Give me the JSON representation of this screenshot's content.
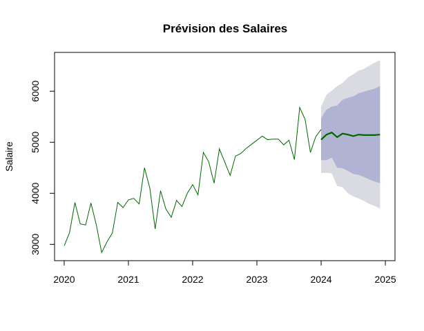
{
  "chart_data": {
    "type": "line",
    "title": "Prévision des Salaires",
    "xlabel": "",
    "ylabel": "Salaire",
    "xlim": [
      2019.85,
      2025.15
    ],
    "ylim": [
      2680,
      6760
    ],
    "grid": false,
    "legend": "none",
    "x_ticks": [
      2020,
      2021,
      2022,
      2023,
      2024,
      2025
    ],
    "x_tick_labels": [
      "2020",
      "2021",
      "2022",
      "2023",
      "2024",
      "2025"
    ],
    "y_ticks": [
      3000,
      4000,
      5000,
      6000
    ],
    "y_tick_labels": [
      "3000",
      "4000",
      "5000",
      "6000"
    ],
    "colors": {
      "history": "#006400",
      "forecast": "#006400",
      "band95": "#dadae2",
      "band80": "#b0b4d2"
    },
    "history": {
      "start": 2020,
      "frequency": 12,
      "values": [
        2970,
        3230,
        3820,
        3400,
        3380,
        3810,
        3380,
        2840,
        3050,
        3220,
        3820,
        3720,
        3870,
        3900,
        3790,
        4500,
        4100,
        3300,
        4050,
        3690,
        3530,
        3860,
        3740,
        4000,
        4170,
        3970,
        4800,
        4620,
        4200,
        4870,
        4610,
        4350,
        4730,
        4780,
        4880,
        4960,
        5040,
        5120,
        5050,
        5060,
        5060,
        4950,
        5040,
        4660,
        5680,
        5450,
        4800,
        5110,
        5250
      ]
    },
    "forecast": {
      "start": 2024,
      "frequency": 12,
      "mean": [
        5050,
        5150,
        5190,
        5100,
        5170,
        5150,
        5120,
        5150,
        5140,
        5140,
        5140,
        5150
      ],
      "lo80": [
        4650,
        4650,
        4700,
        4500,
        4490,
        4440,
        4380,
        4360,
        4320,
        4270,
        4230,
        4200
      ],
      "hi80": [
        5470,
        5640,
        5700,
        5720,
        5830,
        5870,
        5900,
        5960,
        5990,
        6020,
        6050,
        6100
      ],
      "lo95": [
        4400,
        4400,
        4390,
        4140,
        4120,
        4000,
        3940,
        3900,
        3850,
        3790,
        3750,
        3700
      ],
      "hi95": [
        5700,
        5930,
        6010,
        6100,
        6160,
        6270,
        6330,
        6400,
        6440,
        6500,
        6560,
        6610
      ]
    }
  }
}
